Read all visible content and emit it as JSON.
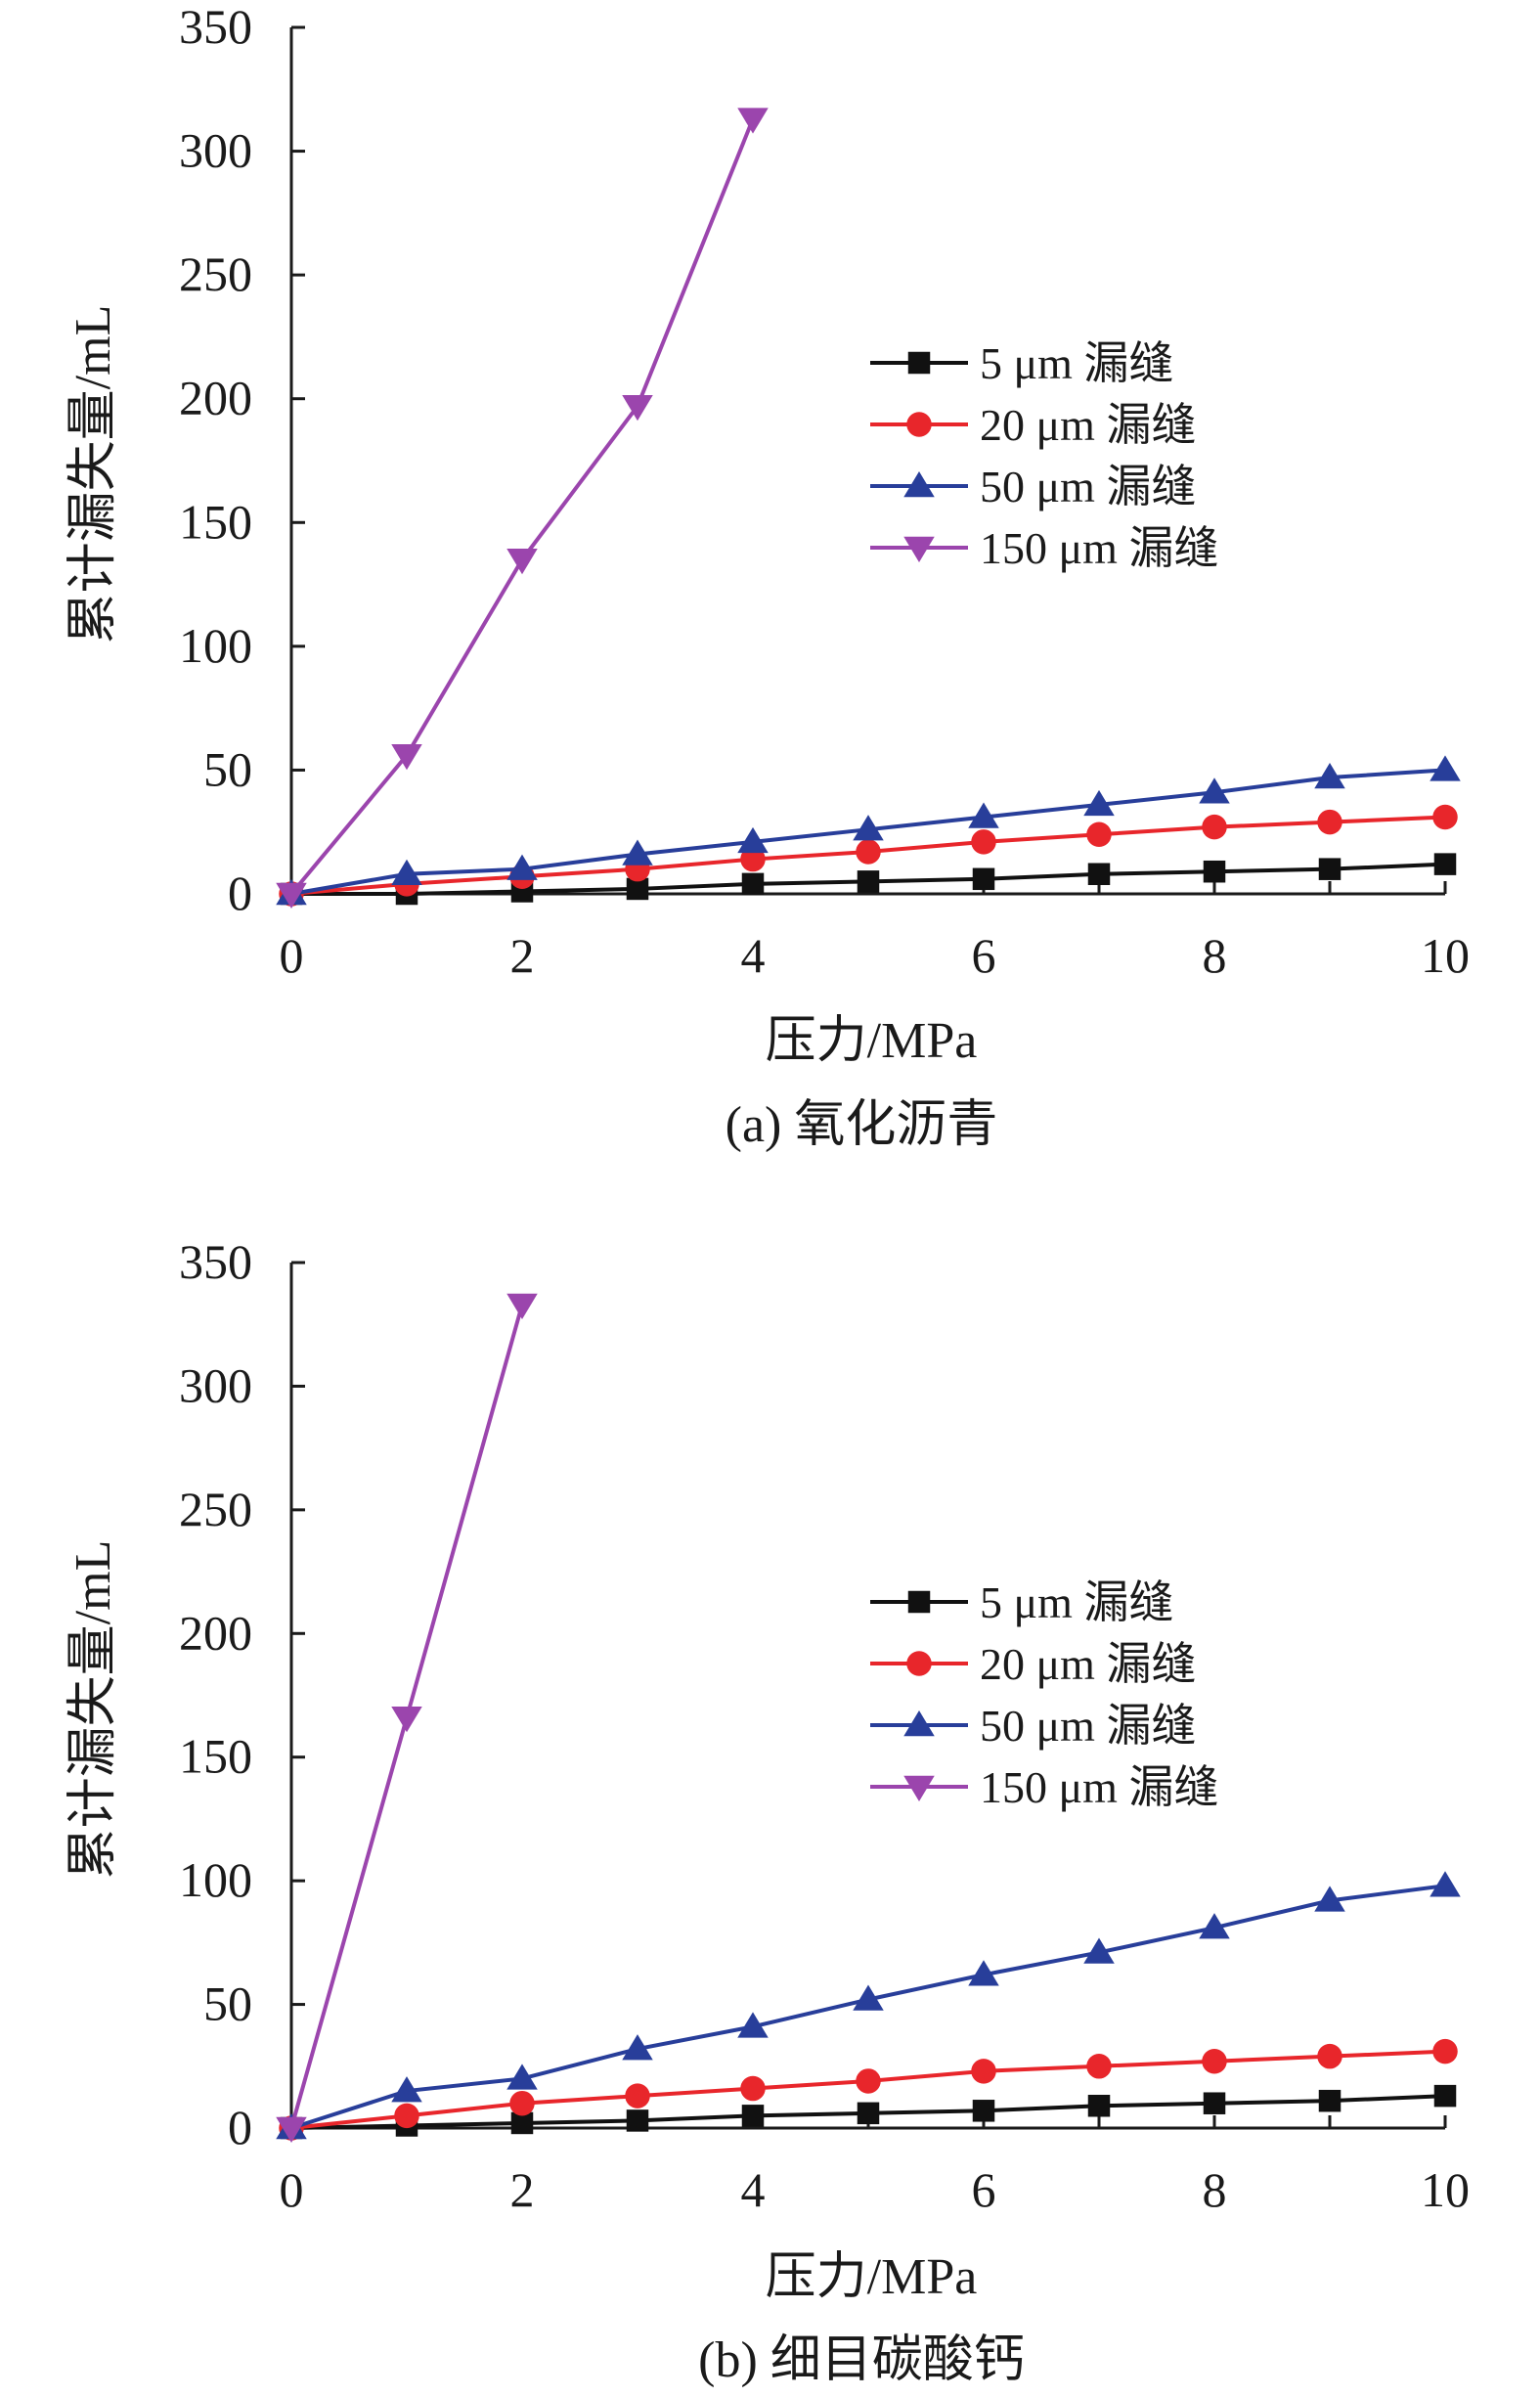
{
  "chart_data": [
    {
      "type": "line",
      "caption": "(a) 氧化沥青",
      "xlabel": "压力/MPa",
      "ylabel": "累计漏失量/mL",
      "xlim": [
        0,
        10
      ],
      "ylim": [
        0,
        350
      ],
      "xticks": [
        "0",
        "2",
        "4",
        "6",
        "8",
        "10"
      ],
      "yticks": [
        "0",
        "50",
        "100",
        "150",
        "200",
        "250",
        "300",
        "350"
      ],
      "grid": false,
      "legend_position": "center-right",
      "series": [
        {
          "name": "5 μm 漏缝",
          "marker": "square",
          "color": "#111111",
          "x": [
            0,
            1,
            2,
            3,
            4,
            5,
            6,
            7,
            8,
            9,
            10
          ],
          "y": [
            0,
            0,
            1,
            2,
            4,
            5,
            6,
            8,
            9,
            10,
            12
          ]
        },
        {
          "name": "20 μm 漏缝",
          "marker": "circle",
          "color": "#e8262b",
          "x": [
            0,
            1,
            2,
            3,
            4,
            5,
            6,
            7,
            8,
            9,
            10
          ],
          "y": [
            0,
            4,
            7,
            10,
            14,
            17,
            21,
            24,
            27,
            29,
            31
          ]
        },
        {
          "name": "50 μm 漏缝",
          "marker": "triangle-up",
          "color": "#283e9a",
          "x": [
            0,
            1,
            2,
            3,
            4,
            5,
            6,
            7,
            8,
            9,
            10
          ],
          "y": [
            0,
            8,
            10,
            16,
            21,
            26,
            31,
            36,
            41,
            47,
            50
          ]
        },
        {
          "name": "150 μm 漏缝",
          "marker": "triangle-down",
          "color": "#9b45ad",
          "x": [
            0,
            1,
            2,
            3,
            4
          ],
          "y": [
            0,
            56,
            135,
            197,
            313
          ]
        }
      ]
    },
    {
      "type": "line",
      "caption": "(b) 细目碳酸钙",
      "xlabel": "压力/MPa",
      "ylabel": "累计漏失量/mL",
      "xlim": [
        0,
        10
      ],
      "ylim": [
        0,
        350
      ],
      "xticks": [
        "0",
        "2",
        "4",
        "6",
        "8",
        "10"
      ],
      "yticks": [
        "0",
        "50",
        "100",
        "150",
        "200",
        "250",
        "300",
        "350"
      ],
      "grid": false,
      "legend_position": "center-right",
      "series": [
        {
          "name": "5 μm 漏缝",
          "marker": "square",
          "color": "#111111",
          "x": [
            0,
            1,
            2,
            3,
            4,
            5,
            6,
            7,
            8,
            9,
            10
          ],
          "y": [
            0,
            1,
            2,
            3,
            5,
            6,
            7,
            9,
            10,
            11,
            13
          ]
        },
        {
          "name": "20 μm 漏缝",
          "marker": "circle",
          "color": "#e8262b",
          "x": [
            0,
            1,
            2,
            3,
            4,
            5,
            6,
            7,
            8,
            9,
            10
          ],
          "y": [
            0,
            5,
            10,
            13,
            16,
            19,
            23,
            25,
            27,
            29,
            31
          ]
        },
        {
          "name": "50 μm 漏缝",
          "marker": "triangle-up",
          "color": "#283e9a",
          "x": [
            0,
            1,
            2,
            3,
            4,
            5,
            6,
            7,
            8,
            9,
            10
          ],
          "y": [
            0,
            15,
            20,
            32,
            41,
            52,
            62,
            71,
            81,
            92,
            98
          ]
        },
        {
          "name": "150 μm 漏缝",
          "marker": "triangle-down",
          "color": "#9b45ad",
          "x": [
            0,
            1,
            2
          ],
          "y": [
            0,
            166,
            333
          ]
        }
      ]
    }
  ]
}
